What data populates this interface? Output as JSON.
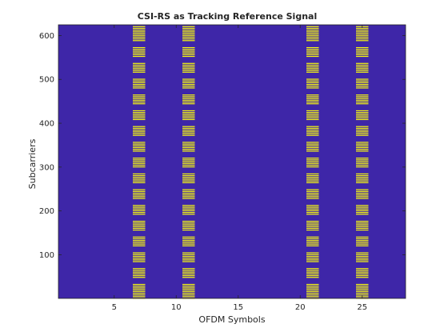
{
  "chart_data": {
    "type": "heatmap",
    "title": "CSI-RS as Tracking Reference Signal",
    "xlabel": "OFDM Symbols",
    "ylabel": "Subcarriers",
    "xlim": [
      0.5,
      28.5
    ],
    "ylim": [
      0.5,
      624.5
    ],
    "xticks": [
      5,
      10,
      15,
      20,
      25
    ],
    "yticks": [
      100,
      200,
      300,
      400,
      500,
      600
    ],
    "grid": false,
    "background_color": "#3e26a8",
    "signal_color": "#f9fb0e",
    "symbols_with_signal": [
      7,
      11,
      21,
      25
    ],
    "subcarrier_start": 1,
    "subcarrier_spacing": 4,
    "subcarrier_end": 621,
    "subcarrier_gap_ranges": [
      [
        35,
        47
      ],
      [
        71,
        83
      ],
      [
        107,
        119
      ],
      [
        143,
        155
      ],
      [
        179,
        191
      ],
      [
        215,
        227
      ],
      [
        251,
        263
      ],
      [
        287,
        299
      ],
      [
        323,
        335
      ],
      [
        359,
        371
      ],
      [
        395,
        407
      ],
      [
        431,
        443
      ],
      [
        467,
        479
      ],
      [
        503,
        515
      ],
      [
        539,
        551
      ],
      [
        575,
        587
      ]
    ]
  }
}
